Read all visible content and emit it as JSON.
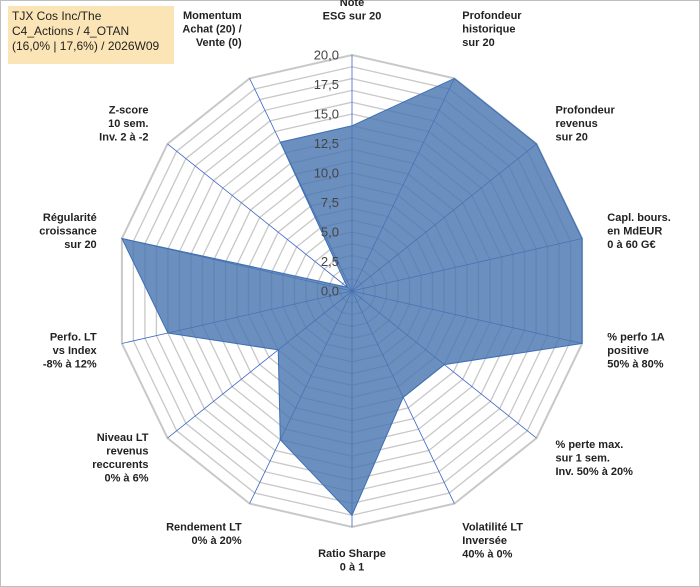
{
  "title_lines": [
    "TJX Cos Inc/The",
    "C4_Actions / 4_OTAN",
    "(16,0% | 17,6%) / 2026W09"
  ],
  "colors": {
    "fill": "#4a76b0",
    "stroke": "#3d6fb5",
    "grid": "#c8c8c8",
    "spoke": "#3a66c4",
    "title_bg": "#fbe5b6"
  },
  "chart_data": {
    "type": "radar",
    "title": "TJX Cos Inc/The C4_Actions / 4_OTAN (16,0% | 17,6%) / 2026W09",
    "rmin": 0,
    "rmax": 20,
    "step": 1,
    "tick_labels": [
      "0,0",
      "2,5",
      "5,0",
      "7,5",
      "10,0",
      "12,5",
      "15,0",
      "17,5",
      "20,0"
    ],
    "series": [
      {
        "name": "TJX Cos Inc/The",
        "color": "#4a76b0"
      }
    ],
    "axes": [
      {
        "label": [
          "Note",
          "ESG sur 20"
        ],
        "value": 14
      },
      {
        "label": [
          "Profondeur",
          "historique",
          "sur 20"
        ],
        "value": 20
      },
      {
        "label": [
          "Profondeur",
          "revenus",
          "sur 20"
        ],
        "value": 20
      },
      {
        "label": [
          "Capl. bours.",
          "en MdEUR",
          "0 à 60 G€"
        ],
        "value": 20
      },
      {
        "label": [
          "% perfo 1A",
          "positive",
          "50% à 80%"
        ],
        "value": 20
      },
      {
        "label": [
          "% perte max.",
          "sur 1 sem.",
          "Inv. 50% à 20%"
        ],
        "value": 10
      },
      {
        "label": [
          "Volatilité LT",
          "Inversée",
          "40% à 0%"
        ],
        "value": 10
      },
      {
        "label": [
          "Ratio Sharpe",
          "0 à 1"
        ],
        "value": 19
      },
      {
        "label": [
          "Rendement LT",
          "0% à 20%"
        ],
        "value": 14
      },
      {
        "label": [
          "Niveau LT",
          "revenus",
          "reccurents",
          "0% à 6%"
        ],
        "value": 8
      },
      {
        "label": [
          "Perfo. LT",
          "vs Index",
          "-8% à 12%"
        ],
        "value": 16
      },
      {
        "label": [
          "Régularité",
          "croissance",
          "sur 20"
        ],
        "value": 20
      },
      {
        "label": [
          "Z-score",
          "10 sem.",
          "Inv. 2 à -2"
        ],
        "value": 0.5
      },
      {
        "label": [
          "Momentum",
          "Achat (20) /",
          "Vente (0)"
        ],
        "value": 14
      }
    ]
  }
}
